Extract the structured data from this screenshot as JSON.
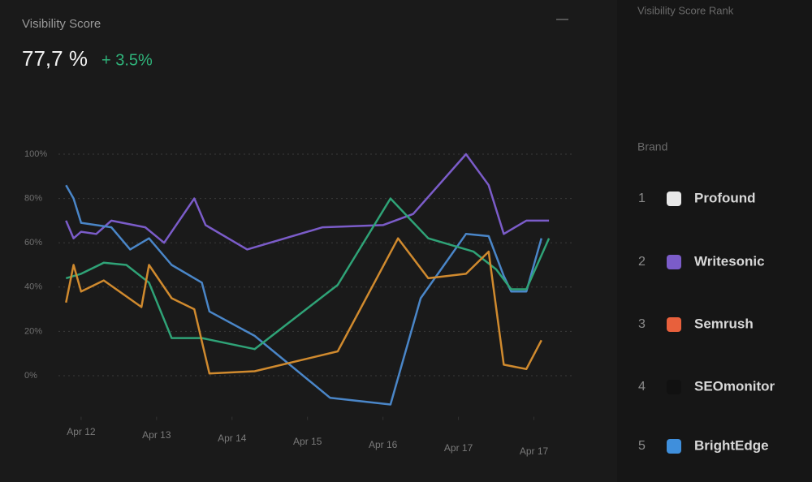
{
  "header": {
    "title": "Visibility Score",
    "value": "77,7 %",
    "change": "+ 3.5%"
  },
  "chart_data": {
    "type": "line",
    "xlim": [
      -0.3,
      6.5
    ],
    "xticks": [
      {
        "value": 0,
        "label": "Apr 12"
      },
      {
        "value": 1,
        "label": "Apr 13"
      },
      {
        "value": 2,
        "label": "Apr 14"
      },
      {
        "value": 3,
        "label": "Apr 15"
      },
      {
        "value": 4,
        "label": "Apr 16"
      },
      {
        "value": 5,
        "label": "Apr 17"
      },
      {
        "value": 6,
        "label": "Apr 17"
      }
    ],
    "ylim": [
      -20,
      110
    ],
    "yticks": [
      {
        "value": 0,
        "label": "0%"
      },
      {
        "value": 20,
        "label": "20%"
      },
      {
        "value": 40,
        "label": "40%"
      },
      {
        "value": 60,
        "label": "60%"
      },
      {
        "value": 80,
        "label": "80%"
      },
      {
        "value": 100,
        "label": "100%"
      }
    ],
    "grid": true,
    "series": [
      {
        "color": "#7b5cc9",
        "x": [
          -0.2,
          -0.1,
          0,
          0.2,
          0.4,
          0.85,
          1.1,
          1.5,
          1.65,
          2.2,
          3.2,
          4,
          4.4,
          5.1,
          5.4,
          5.6,
          5.9,
          6.2
        ],
        "values": [
          70,
          62,
          65,
          64,
          70,
          67,
          60,
          80,
          68,
          57,
          67,
          68,
          73,
          100,
          86,
          64,
          70,
          70
        ]
      },
      {
        "color": "#4a86c8",
        "x": [
          -0.2,
          -0.1,
          0,
          0.4,
          0.65,
          0.9,
          1.2,
          1.6,
          1.7,
          2.3,
          3.3,
          4.1,
          4.5,
          5.1,
          5.4,
          5.6,
          5.7,
          5.9,
          6.1
        ],
        "values": [
          86,
          80,
          69,
          67,
          57,
          62,
          50,
          42,
          29,
          18,
          -10,
          -13,
          35,
          64,
          63,
          45,
          38,
          38,
          62
        ]
      },
      {
        "color": "#2fa377",
        "x": [
          -0.2,
          0,
          0.3,
          0.6,
          0.9,
          1.2,
          1.6,
          2.3,
          3.4,
          4.1,
          4.6,
          5.2,
          5.5,
          5.7,
          5.9,
          6.2
        ],
        "values": [
          44,
          46,
          51,
          50,
          42,
          17,
          17,
          12,
          41,
          80,
          62,
          56,
          48,
          39,
          39,
          62
        ]
      },
      {
        "color": "#d08a2e",
        "x": [
          -0.2,
          -0.1,
          0,
          0.3,
          0.8,
          0.9,
          1.2,
          1.5,
          1.7,
          2.3,
          3.4,
          4.2,
          4.6,
          5.1,
          5.4,
          5.6,
          5.9,
          6.1
        ],
        "values": [
          33,
          50,
          38,
          43,
          31,
          50,
          35,
          30,
          1,
          2,
          11,
          62,
          44,
          46,
          56,
          5,
          3,
          16
        ]
      }
    ]
  },
  "rank": {
    "title": "Visibility Score Rank",
    "header": "Brand",
    "rows": [
      {
        "rank": 1,
        "name": "Profound",
        "color": "#e8e8e8"
      },
      {
        "rank": 2,
        "name": "Writesonic",
        "color": "#7b5cc9"
      },
      {
        "rank": 3,
        "name": "Semrush",
        "color": "#e8603c"
      },
      {
        "rank": 4,
        "name": "SEOmonitor",
        "color": "#111111"
      },
      {
        "rank": 5,
        "name": "BrightEdge",
        "color": "#3f8fdc"
      }
    ]
  }
}
